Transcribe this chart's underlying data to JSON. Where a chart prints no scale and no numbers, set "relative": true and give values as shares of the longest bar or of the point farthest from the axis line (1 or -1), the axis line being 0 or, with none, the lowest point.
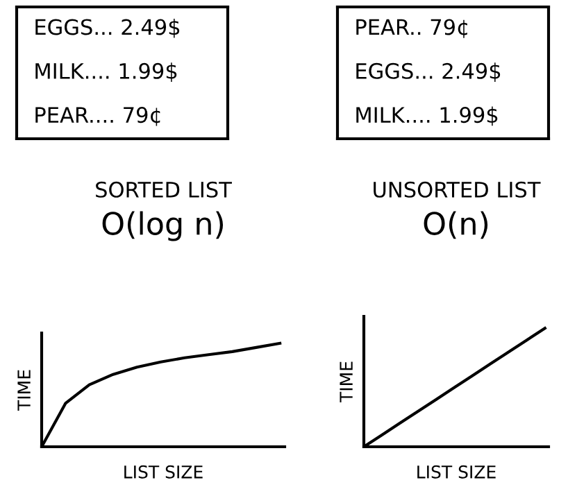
{
  "chart_data": [
    {
      "type": "other",
      "annotations": [
        "EGGS... 2.49$",
        "MILK.... 1.99$",
        "PEAR.... 79¢"
      ]
    },
    {
      "type": "other",
      "annotations": [
        "PEAR.. 79¢",
        "EGGS... 2.49$",
        "MILK.... 1.99$"
      ]
    },
    {
      "type": "line",
      "title": "SORTED LIST",
      "subtitle": "O(log n)",
      "xlabel": "LIST SIZE",
      "ylabel": "TIME",
      "relative": true,
      "categories": [
        null,
        null,
        null,
        null,
        null,
        null,
        null,
        null,
        null,
        null,
        null
      ],
      "series": [
        {
          "color": "#000000",
          "values": [
            0,
            0.42,
            0.6,
            0.7,
            0.77,
            0.82,
            0.86,
            0.89,
            0.92,
            0.96,
            1.0
          ]
        }
      ]
    },
    {
      "type": "line",
      "title": "UNSORTED LIST",
      "subtitle": "O(n)",
      "xlabel": "LIST SIZE",
      "ylabel": "TIME",
      "relative": true,
      "categories": [
        null,
        null,
        null,
        null,
        null,
        null,
        null,
        null,
        null,
        null,
        null
      ],
      "series": [
        {
          "color": "#000000",
          "values": [
            0,
            0.1,
            0.2,
            0.3,
            0.4,
            0.5,
            0.6,
            0.7,
            0.8,
            0.9,
            1.0
          ]
        }
      ]
    }
  ]
}
